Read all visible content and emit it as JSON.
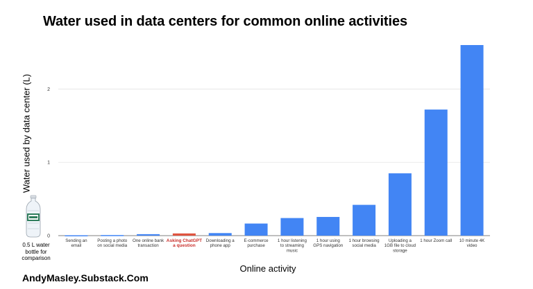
{
  "chart_data": {
    "type": "bar",
    "title": "Water used in data centers for common online activities",
    "xlabel": "Online activity",
    "ylabel": "Water used by data center (L)",
    "ylim": [
      0,
      2.6
    ],
    "yticks": [
      "0",
      "1",
      "2"
    ],
    "grid": true,
    "bar_color": "#4285F4",
    "highlight_bar_color": "#E0533F",
    "highlight_label_color": "#C9302C",
    "highlight_index": 3,
    "categories": [
      [
        "Sending an",
        "email"
      ],
      [
        "Posting a photo",
        "on social media"
      ],
      [
        "One online bank",
        "transaction"
      ],
      [
        "Asking ChatGPT",
        "a question"
      ],
      [
        "Downloading a",
        "phone app"
      ],
      [
        "E-commerce",
        "purchase"
      ],
      [
        "1 hour listening",
        "to streaming",
        "music"
      ],
      [
        "1 hour using",
        "GPS navigation"
      ],
      [
        "1 hour browsing",
        "social media"
      ],
      [
        "Uploading a",
        "1GB file to cloud",
        "storage"
      ],
      [
        "1 hour Zoom call"
      ],
      [
        "10 minute 4K",
        "video"
      ]
    ],
    "values": [
      0.005,
      0.008,
      0.02,
      0.03,
      0.035,
      0.165,
      0.24,
      0.255,
      0.42,
      0.85,
      1.72,
      2.6
    ]
  },
  "comparison": {
    "caption": [
      "0.5 L water",
      "bottle for",
      "comparison"
    ],
    "value": 0.5
  },
  "attribution": "AndyMasley.Substack.Com"
}
